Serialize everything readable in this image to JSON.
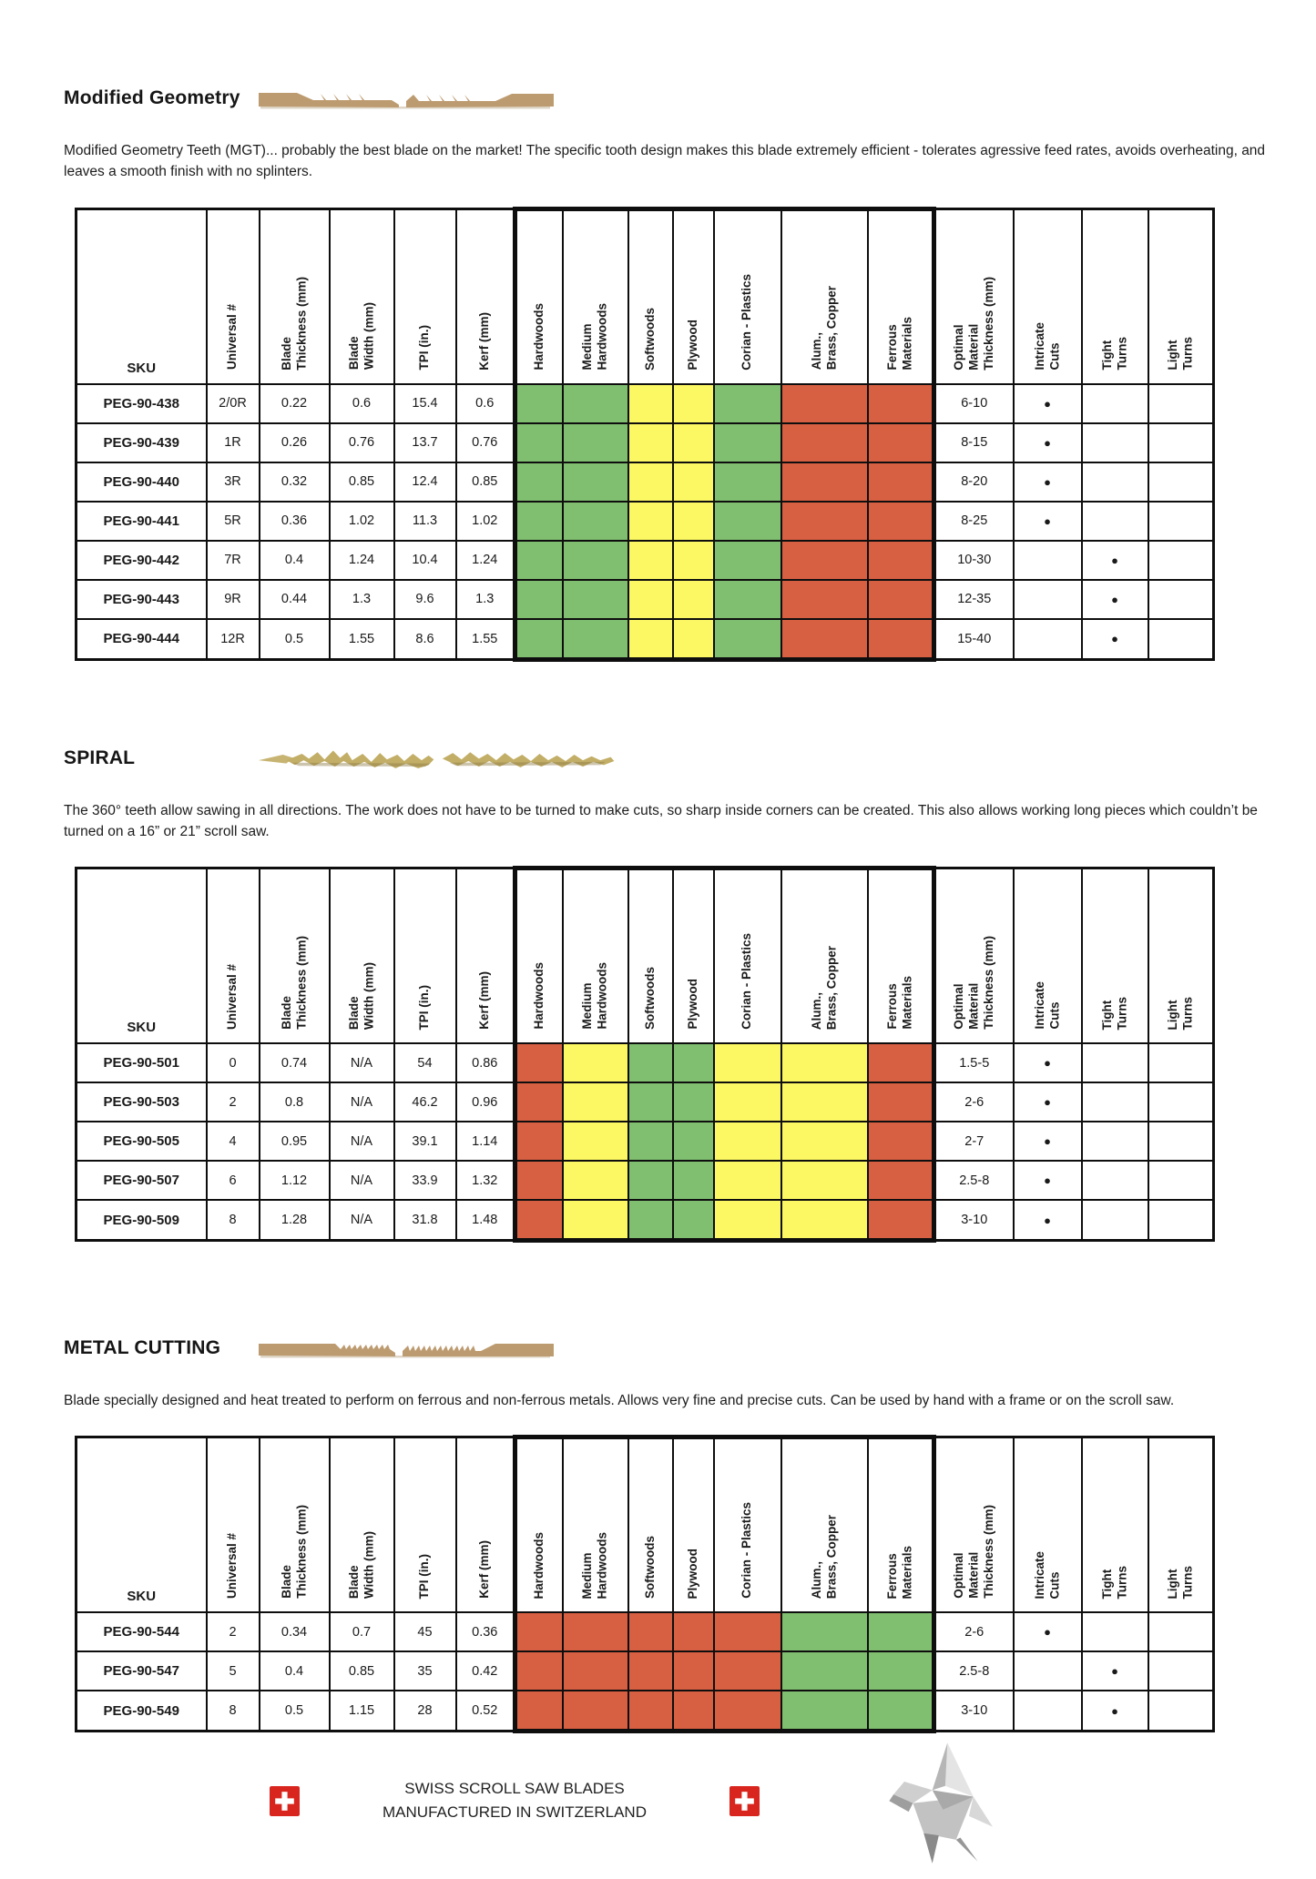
{
  "columns": {
    "sku_label": "SKU",
    "specs": [
      "Universal #",
      "Blade\nThickness (mm)",
      "Blade\nWidth (mm)",
      "TPI (in.)",
      "Kerf (mm)"
    ],
    "materials": [
      "Hardwoods",
      "Medium\nHardwoods",
      "Softwoods",
      "Plywood",
      "Corian  - Plastics",
      "Alum.,\nBrass, Copper",
      "Ferrous\nMaterials"
    ],
    "extras": [
      "Optimal\nMaterial\nThickness (mm)",
      "Intricate\nCuts",
      "Tight\nTurns",
      "Light\nTurns"
    ]
  },
  "rating_colors": {
    "green": "#80BE70",
    "yellow": "#FCF864",
    "red": "#D86042"
  },
  "table_symbols": {
    "filled_dot": "●"
  },
  "sections": [
    {
      "title": "Modified Geometry",
      "blade_image": "mgt-flat-blade-photo",
      "description": "Modified Geometry Teeth (MGT)... probably the best blade on the market! The specific tooth design makes this blade extremely efficient - tolerates agressive feed rates, avoids overheating, and leaves a smooth finish with no splinters.",
      "rows": [
        {
          "sku": "PEG-90-438",
          "universal": "2/0R",
          "blade_thickness": "0.22",
          "blade_width": "0.6",
          "tpi": "15.4",
          "kerf": "0.6",
          "ratings": [
            "green",
            "green",
            "yellow",
            "yellow",
            "green",
            "red",
            "red"
          ],
          "optimal": "6-10",
          "intricate": true,
          "tight": false,
          "light": false
        },
        {
          "sku": "PEG-90-439",
          "universal": "1R",
          "blade_thickness": "0.26",
          "blade_width": "0.76",
          "tpi": "13.7",
          "kerf": "0.76",
          "ratings": [
            "green",
            "green",
            "yellow",
            "yellow",
            "green",
            "red",
            "red"
          ],
          "optimal": "8-15",
          "intricate": true,
          "tight": false,
          "light": false
        },
        {
          "sku": "PEG-90-440",
          "universal": "3R",
          "blade_thickness": "0.32",
          "blade_width": "0.85",
          "tpi": "12.4",
          "kerf": "0.85",
          "ratings": [
            "green",
            "green",
            "yellow",
            "yellow",
            "green",
            "red",
            "red"
          ],
          "optimal": "8-20",
          "intricate": true,
          "tight": false,
          "light": false
        },
        {
          "sku": "PEG-90-441",
          "universal": "5R",
          "blade_thickness": "0.36",
          "blade_width": "1.02",
          "tpi": "11.3",
          "kerf": "1.02",
          "ratings": [
            "green",
            "green",
            "yellow",
            "yellow",
            "green",
            "red",
            "red"
          ],
          "optimal": "8-25",
          "intricate": true,
          "tight": false,
          "light": false
        },
        {
          "sku": "PEG-90-442",
          "universal": "7R",
          "blade_thickness": "0.4",
          "blade_width": "1.24",
          "tpi": "10.4",
          "kerf": "1.24",
          "ratings": [
            "green",
            "green",
            "yellow",
            "yellow",
            "green",
            "red",
            "red"
          ],
          "optimal": "10-30",
          "intricate": false,
          "tight": true,
          "light": false
        },
        {
          "sku": "PEG-90-443",
          "universal": "9R",
          "blade_thickness": "0.44",
          "blade_width": "1.3",
          "tpi": "9.6",
          "kerf": "1.3",
          "ratings": [
            "green",
            "green",
            "yellow",
            "yellow",
            "green",
            "red",
            "red"
          ],
          "optimal": "12-35",
          "intricate": false,
          "tight": true,
          "light": false
        },
        {
          "sku": "PEG-90-444",
          "universal": "12R",
          "blade_thickness": "0.5",
          "blade_width": "1.55",
          "tpi": "8.6",
          "kerf": "1.55",
          "ratings": [
            "green",
            "green",
            "yellow",
            "yellow",
            "green",
            "red",
            "red"
          ],
          "optimal": "15-40",
          "intricate": false,
          "tight": true,
          "light": false
        }
      ]
    },
    {
      "title": "SPIRAL",
      "blade_image": "spiral-blade-photo",
      "description": "The 360° teeth allow sawing in all directions. The work does not have to be turned to make cuts, so sharp inside corners can be created. This also allows working long pieces which couldn’t be turned on a 16” or 21” scroll saw.",
      "rows": [
        {
          "sku": "PEG-90-501",
          "universal": "0",
          "blade_thickness": "0.74",
          "blade_width": "N/A",
          "tpi": "54",
          "kerf": "0.86",
          "ratings": [
            "red",
            "yellow",
            "green",
            "green",
            "yellow",
            "yellow",
            "red"
          ],
          "optimal": "1.5-5",
          "intricate": true,
          "tight": false,
          "light": false
        },
        {
          "sku": "PEG-90-503",
          "universal": "2",
          "blade_thickness": "0.8",
          "blade_width": "N/A",
          "tpi": "46.2",
          "kerf": "0.96",
          "ratings": [
            "red",
            "yellow",
            "green",
            "green",
            "yellow",
            "yellow",
            "red"
          ],
          "optimal": "2-6",
          "intricate": true,
          "tight": false,
          "light": false
        },
        {
          "sku": "PEG-90-505",
          "universal": "4",
          "blade_thickness": "0.95",
          "blade_width": "N/A",
          "tpi": "39.1",
          "kerf": "1.14",
          "ratings": [
            "red",
            "yellow",
            "green",
            "green",
            "yellow",
            "yellow",
            "red"
          ],
          "optimal": "2-7",
          "intricate": true,
          "tight": false,
          "light": false
        },
        {
          "sku": "PEG-90-507",
          "universal": "6",
          "blade_thickness": "1.12",
          "blade_width": "N/A",
          "tpi": "33.9",
          "kerf": "1.32",
          "ratings": [
            "red",
            "yellow",
            "green",
            "green",
            "yellow",
            "yellow",
            "red"
          ],
          "optimal": "2.5-8",
          "intricate": true,
          "tight": false,
          "light": false
        },
        {
          "sku": "PEG-90-509",
          "universal": "8",
          "blade_thickness": "1.28",
          "blade_width": "N/A",
          "tpi": "31.8",
          "kerf": "1.48",
          "ratings": [
            "red",
            "yellow",
            "green",
            "green",
            "yellow",
            "yellow",
            "red"
          ],
          "optimal": "3-10",
          "intricate": true,
          "tight": false,
          "light": false
        }
      ]
    },
    {
      "title": "METAL CUTTING",
      "blade_image": "metal-cutting-blade-photo",
      "description": "Blade specially designed and heat treated to perform on ferrous and non-ferrous metals. Allows very fine and precise cuts. Can be used by hand with a frame or on the scroll saw.",
      "rows": [
        {
          "sku": "PEG-90-544",
          "universal": "2",
          "blade_thickness": "0.34",
          "blade_width": "0.7",
          "tpi": "45",
          "kerf": "0.36",
          "ratings": [
            "red",
            "red",
            "red",
            "red",
            "red",
            "green",
            "green"
          ],
          "optimal": "2-6",
          "intricate": true,
          "tight": false,
          "light": false
        },
        {
          "sku": "PEG-90-547",
          "universal": "5",
          "blade_thickness": "0.4",
          "blade_width": "0.85",
          "tpi": "35",
          "kerf": "0.42",
          "ratings": [
            "red",
            "red",
            "red",
            "red",
            "red",
            "green",
            "green"
          ],
          "optimal": "2.5-8",
          "intricate": false,
          "tight": true,
          "light": false
        },
        {
          "sku": "PEG-90-549",
          "universal": "8",
          "blade_thickness": "0.5",
          "blade_width": "1.15",
          "tpi": "28",
          "kerf": "0.52",
          "ratings": [
            "red",
            "red",
            "red",
            "red",
            "red",
            "green",
            "green"
          ],
          "optimal": "3-10",
          "intricate": false,
          "tight": true,
          "light": false
        }
      ]
    }
  ],
  "footer": {
    "line1": "SWISS SCROLL SAW BLADES",
    "line2": "MANUFACTURED IN SWITZERLAND",
    "flag_color": "#D8251D"
  }
}
